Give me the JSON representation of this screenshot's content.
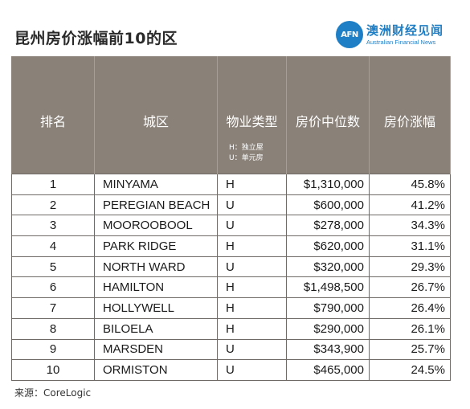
{
  "title": "昆州房价涨幅前10的区",
  "logo": {
    "mark": "AFN",
    "cn": "澳洲财经见闻",
    "en": "Australian Financial News"
  },
  "headers": {
    "rank": "排名",
    "suburb": "城区",
    "type": "物业类型",
    "type_note_1": "H：独立屋",
    "type_note_2": "U：单元房",
    "median": "房价中位数",
    "growth": "房价涨幅"
  },
  "rows": [
    {
      "rank": "1",
      "suburb": "MINYAMA",
      "type": "H",
      "median": "$1,310,000",
      "growth": "45.8%"
    },
    {
      "rank": "2",
      "suburb": "PEREGIAN BEACH",
      "type": "U",
      "median": "$600,000",
      "growth": "41.2%"
    },
    {
      "rank": "3",
      "suburb": "MOOROOBOOL",
      "type": "U",
      "median": "$278,000",
      "growth": "34.3%"
    },
    {
      "rank": "4",
      "suburb": "PARK RIDGE",
      "type": "H",
      "median": "$620,000",
      "growth": "31.1%"
    },
    {
      "rank": "5",
      "suburb": "NORTH WARD",
      "type": "U",
      "median": "$320,000",
      "growth": "29.3%"
    },
    {
      "rank": "6",
      "suburb": "HAMILTON",
      "type": "H",
      "median": "$1,498,500",
      "growth": "26.7%"
    },
    {
      "rank": "7",
      "suburb": "HOLLYWELL",
      "type": "H",
      "median": "$790,000",
      "growth": "26.4%"
    },
    {
      "rank": "8",
      "suburb": "BILOELA",
      "type": "H",
      "median": "$290,000",
      "growth": "26.1%"
    },
    {
      "rank": "9",
      "suburb": "MARSDEN",
      "type": "U",
      "median": "$343,900",
      "growth": "25.7%"
    },
    {
      "rank": "10",
      "suburb": "ORMISTON",
      "type": "U",
      "median": "$465,000",
      "growth": "24.5%"
    }
  ],
  "source": "来源：CoreLogic"
}
